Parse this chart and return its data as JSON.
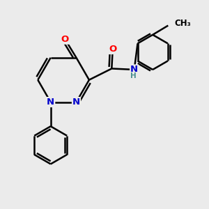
{
  "bg_color": "#ebebeb",
  "atom_colors": {
    "C": "#000000",
    "N": "#0000cc",
    "O": "#ff0000",
    "H": "#4a9090"
  },
  "bond_color": "#000000",
  "bond_width": 1.8,
  "fig_width": 3.0,
  "fig_height": 3.0,
  "dpi": 100
}
